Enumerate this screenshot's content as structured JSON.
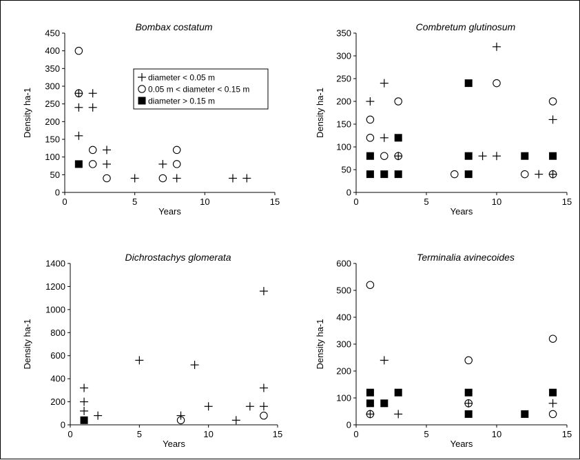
{
  "legend": {
    "entries": [
      {
        "marker": "plus",
        "label": "diameter < 0.05 m"
      },
      {
        "marker": "circle",
        "label": "0.05 m < diameter < 0.15 m"
      },
      {
        "marker": "square",
        "label": "diameter > 0.15 m"
      }
    ]
  },
  "chart_data": [
    {
      "type": "scatter",
      "title": "Bombax costatum",
      "xlabel": "Years",
      "ylabel": "Density ha-1",
      "xlim": [
        0,
        15
      ],
      "xticks": [
        0,
        5,
        10,
        15
      ],
      "ylim": [
        0,
        450
      ],
      "yticks": [
        0,
        50,
        100,
        150,
        200,
        250,
        300,
        350,
        400,
        450
      ],
      "legend_placement": "inside-upper-right",
      "series": [
        {
          "name": "diameter < 0.05 m",
          "marker": "plus",
          "x": [
            1,
            1,
            1,
            2,
            2,
            3,
            3,
            5,
            7,
            8,
            12,
            13
          ],
          "y": [
            280,
            240,
            160,
            280,
            240,
            120,
            80,
            40,
            80,
            40,
            40,
            40
          ]
        },
        {
          "name": "0.05 m < diameter < 0.15 m",
          "marker": "circle",
          "x": [
            1,
            1,
            2,
            2,
            3,
            7,
            8,
            8
          ],
          "y": [
            400,
            280,
            120,
            80,
            40,
            40,
            120,
            80
          ]
        },
        {
          "name": "diameter > 0.15 m",
          "marker": "square",
          "x": [
            1
          ],
          "y": [
            80
          ]
        }
      ]
    },
    {
      "type": "scatter",
      "title": "Combretum glutinosum",
      "xlabel": "Years",
      "ylabel": "Density ha-1",
      "xlim": [
        0,
        15
      ],
      "xticks": [
        0,
        5,
        10,
        15
      ],
      "ylim": [
        0,
        350
      ],
      "yticks": [
        0,
        50,
        100,
        150,
        200,
        250,
        300,
        350
      ],
      "series": [
        {
          "name": "diameter < 0.05 m",
          "marker": "plus",
          "x": [
            1,
            2,
            2,
            3,
            9,
            10,
            10,
            13,
            14,
            14
          ],
          "y": [
            200,
            240,
            120,
            80,
            80,
            320,
            80,
            40,
            160,
            40
          ]
        },
        {
          "name": "0.05 m < diameter < 0.15 m",
          "marker": "circle",
          "x": [
            1,
            1,
            2,
            3,
            3,
            7,
            10,
            12,
            14,
            14
          ],
          "y": [
            160,
            120,
            80,
            200,
            80,
            40,
            240,
            40,
            200,
            40
          ]
        },
        {
          "name": "diameter > 0.15 m",
          "marker": "square",
          "x": [
            1,
            1,
            2,
            3,
            3,
            8,
            8,
            8,
            12,
            14
          ],
          "y": [
            80,
            40,
            40,
            120,
            40,
            240,
            80,
            40,
            80,
            80
          ]
        }
      ]
    },
    {
      "type": "scatter",
      "title": "Dichrostachys glomerata",
      "xlabel": "Years",
      "ylabel": "Density ha-1",
      "xlim": [
        0,
        15
      ],
      "xticks": [
        0,
        5,
        10,
        15
      ],
      "ylim": [
        0,
        1400
      ],
      "yticks": [
        0,
        200,
        400,
        600,
        800,
        1000,
        1200,
        1400
      ],
      "series": [
        {
          "name": "diameter < 0.05 m",
          "marker": "plus",
          "x": [
            1,
            1,
            1,
            2,
            5,
            8,
            9,
            10,
            12,
            13,
            14,
            14,
            14
          ],
          "y": [
            320,
            200,
            120,
            80,
            560,
            80,
            520,
            160,
            40,
            160,
            1160,
            320,
            160
          ]
        },
        {
          "name": "0.05 m < diameter < 0.15 m",
          "marker": "circle",
          "x": [
            8,
            14
          ],
          "y": [
            40,
            80
          ]
        },
        {
          "name": "diameter > 0.15 m",
          "marker": "square",
          "x": [
            1
          ],
          "y": [
            40
          ]
        }
      ]
    },
    {
      "type": "scatter",
      "title": "Terminalia avinecoides",
      "xlabel": "Years",
      "ylabel": "Density ha-1",
      "xlim": [
        0,
        15
      ],
      "xticks": [
        0,
        5,
        10,
        15
      ],
      "ylim": [
        0,
        600
      ],
      "yticks": [
        0,
        100,
        200,
        300,
        400,
        500,
        600
      ],
      "series": [
        {
          "name": "diameter < 0.05 m",
          "marker": "plus",
          "x": [
            1,
            2,
            3,
            8,
            14
          ],
          "y": [
            40,
            240,
            40,
            80,
            80
          ]
        },
        {
          "name": "0.05 m < diameter < 0.15 m",
          "marker": "circle",
          "x": [
            1,
            1,
            8,
            8,
            14,
            14
          ],
          "y": [
            520,
            40,
            240,
            80,
            320,
            40
          ]
        },
        {
          "name": "diameter > 0.15 m",
          "marker": "square",
          "x": [
            1,
            1,
            2,
            3,
            8,
            8,
            12,
            14
          ],
          "y": [
            120,
            80,
            80,
            120,
            120,
            40,
            40,
            120
          ]
        }
      ]
    }
  ]
}
